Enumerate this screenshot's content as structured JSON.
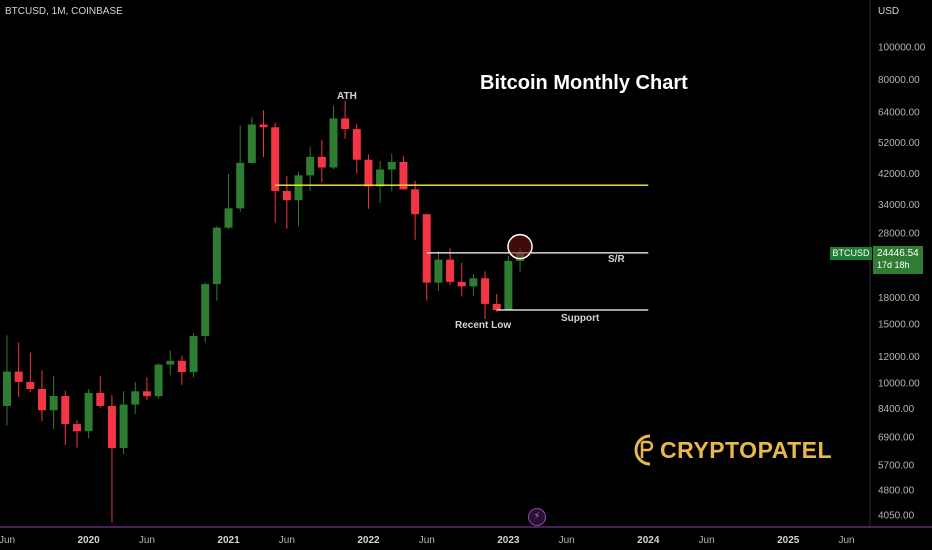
{
  "header": {
    "symbol": "BTCUSD, 1M, COINBASE",
    "currency": "USD"
  },
  "chart_data": {
    "type": "candlestick",
    "title": "Bitcoin Monthly Chart",
    "y_scale": "log",
    "y_ticks": [
      "100000.00",
      "80000.00",
      "64000.00",
      "52000.00",
      "42000.00",
      "34000.00",
      "28000.00",
      "18000.00",
      "15000.00",
      "12000.00",
      "10000.00",
      "8400.00",
      "6900.00",
      "5700.00",
      "4800.00",
      "4050.00"
    ],
    "x_ticks": [
      {
        "label": "Jun",
        "month": "2019-06",
        "bold": false
      },
      {
        "label": "2020",
        "month": "2020-01",
        "bold": true
      },
      {
        "label": "Jun",
        "month": "2020-06",
        "bold": false
      },
      {
        "label": "2021",
        "month": "2021-01",
        "bold": true
      },
      {
        "label": "Jun",
        "month": "2021-06",
        "bold": false
      },
      {
        "label": "2022",
        "month": "2022-01",
        "bold": true
      },
      {
        "label": "Jun",
        "month": "2022-06",
        "bold": false
      },
      {
        "label": "2023",
        "month": "2023-01",
        "bold": true
      },
      {
        "label": "Jun",
        "month": "2023-06",
        "bold": false
      },
      {
        "label": "2024",
        "month": "2024-01",
        "bold": true
      },
      {
        "label": "Jun",
        "month": "2024-06",
        "bold": false
      },
      {
        "label": "2025",
        "month": "2025-01",
        "bold": true
      },
      {
        "label": "Jun",
        "month": "2025-06",
        "bold": false
      }
    ],
    "candles": [
      {
        "month": "2019-06",
        "o": 8550,
        "h": 13880,
        "l": 7480,
        "c": 10820
      },
      {
        "month": "2019-07",
        "o": 10820,
        "h": 13200,
        "l": 9100,
        "c": 10080
      },
      {
        "month": "2019-08",
        "o": 10080,
        "h": 12320,
        "l": 9400,
        "c": 9600
      },
      {
        "month": "2019-09",
        "o": 9600,
        "h": 10900,
        "l": 7700,
        "c": 8300
      },
      {
        "month": "2019-10",
        "o": 8300,
        "h": 10500,
        "l": 7300,
        "c": 9150
      },
      {
        "month": "2019-11",
        "o": 9150,
        "h": 9500,
        "l": 6550,
        "c": 7550
      },
      {
        "month": "2019-12",
        "o": 7550,
        "h": 7750,
        "l": 6430,
        "c": 7190
      },
      {
        "month": "2020-01",
        "o": 7190,
        "h": 9600,
        "l": 6850,
        "c": 9350
      },
      {
        "month": "2020-02",
        "o": 9350,
        "h": 10500,
        "l": 8450,
        "c": 8550
      },
      {
        "month": "2020-03",
        "o": 8550,
        "h": 9200,
        "l": 3850,
        "c": 6410
      },
      {
        "month": "2020-04",
        "o": 6410,
        "h": 9460,
        "l": 6150,
        "c": 8630
      },
      {
        "month": "2020-05",
        "o": 8630,
        "h": 10080,
        "l": 8100,
        "c": 9450
      },
      {
        "month": "2020-06",
        "o": 9450,
        "h": 10400,
        "l": 8900,
        "c": 9140
      },
      {
        "month": "2020-07",
        "o": 9140,
        "h": 11450,
        "l": 8980,
        "c": 11350
      },
      {
        "month": "2020-08",
        "o": 11350,
        "h": 12480,
        "l": 10550,
        "c": 11650
      },
      {
        "month": "2020-09",
        "o": 11650,
        "h": 12080,
        "l": 9880,
        "c": 10780
      },
      {
        "month": "2020-10",
        "o": 10780,
        "h": 14100,
        "l": 10400,
        "c": 13800
      },
      {
        "month": "2020-11",
        "o": 13800,
        "h": 19900,
        "l": 13200,
        "c": 19700
      },
      {
        "month": "2020-12",
        "o": 19700,
        "h": 29300,
        "l": 17600,
        "c": 29000
      },
      {
        "month": "2021-01",
        "o": 29000,
        "h": 41900,
        "l": 28700,
        "c": 33100
      },
      {
        "month": "2021-02",
        "o": 33100,
        "h": 58400,
        "l": 32300,
        "c": 45200
      },
      {
        "month": "2021-03",
        "o": 45200,
        "h": 61800,
        "l": 44950,
        "c": 58800
      },
      {
        "month": "2021-04",
        "o": 58800,
        "h": 64800,
        "l": 47000,
        "c": 57700
      },
      {
        "month": "2021-05",
        "o": 57700,
        "h": 59500,
        "l": 30000,
        "c": 37300
      },
      {
        "month": "2021-06",
        "o": 37300,
        "h": 41300,
        "l": 28800,
        "c": 35000
      },
      {
        "month": "2021-07",
        "o": 35000,
        "h": 42400,
        "l": 29300,
        "c": 41500
      },
      {
        "month": "2021-08",
        "o": 41500,
        "h": 50500,
        "l": 37300,
        "c": 47100
      },
      {
        "month": "2021-09",
        "o": 47100,
        "h": 52900,
        "l": 39600,
        "c": 43800
      },
      {
        "month": "2021-10",
        "o": 43800,
        "h": 66900,
        "l": 43300,
        "c": 61300
      },
      {
        "month": "2021-11",
        "o": 61300,
        "h": 69000,
        "l": 53300,
        "c": 57000
      },
      {
        "month": "2021-12",
        "o": 57000,
        "h": 59100,
        "l": 42000,
        "c": 46200
      },
      {
        "month": "2022-01",
        "o": 46200,
        "h": 47900,
        "l": 33000,
        "c": 38500
      },
      {
        "month": "2022-02",
        "o": 38500,
        "h": 45800,
        "l": 34300,
        "c": 43200
      },
      {
        "month": "2022-03",
        "o": 43200,
        "h": 48200,
        "l": 37200,
        "c": 45500
      },
      {
        "month": "2022-04",
        "o": 45500,
        "h": 47400,
        "l": 37700,
        "c": 37700
      },
      {
        "month": "2022-05",
        "o": 37700,
        "h": 40000,
        "l": 26700,
        "c": 31800
      },
      {
        "month": "2022-06",
        "o": 31800,
        "h": 31900,
        "l": 17600,
        "c": 19900
      },
      {
        "month": "2022-07",
        "o": 19900,
        "h": 24700,
        "l": 18800,
        "c": 23300
      },
      {
        "month": "2022-08",
        "o": 23300,
        "h": 25200,
        "l": 19600,
        "c": 20000
      },
      {
        "month": "2022-09",
        "o": 20000,
        "h": 22800,
        "l": 18100,
        "c": 19400
      },
      {
        "month": "2022-10",
        "o": 19400,
        "h": 21100,
        "l": 18200,
        "c": 20500
      },
      {
        "month": "2022-11",
        "o": 20500,
        "h": 21500,
        "l": 15500,
        "c": 17200
      },
      {
        "month": "2022-12",
        "o": 17200,
        "h": 18400,
        "l": 16300,
        "c": 16500
      },
      {
        "month": "2023-01",
        "o": 16500,
        "h": 23900,
        "l": 16500,
        "c": 23100
      },
      {
        "month": "2023-02",
        "o": 23100,
        "h": 25250,
        "l": 21400,
        "c": 24446.54
      }
    ],
    "lines": [
      {
        "name": "upper-level",
        "price": 38800,
        "from": "2021-05",
        "to": "2024-01",
        "color": "#ffeb3b"
      },
      {
        "name": "sr-level",
        "price": 24400,
        "from": "2022-06",
        "to": "2024-01",
        "color": "#ffffff"
      },
      {
        "name": "support-level",
        "price": 16500,
        "from": "2022-12",
        "to": "2024-01",
        "color": "#ffffff"
      }
    ],
    "annotations": [
      {
        "key": "ath",
        "text": "ATH",
        "color": "#f5d442"
      },
      {
        "key": "sr",
        "text": "S/R",
        "color": "#ffffff"
      },
      {
        "key": "recent_low",
        "text": "Recent Low",
        "color": "#f5d442"
      },
      {
        "key": "support",
        "text": "Support",
        "color": "#f5d442"
      }
    ],
    "highlight": {
      "month": "2023-02",
      "price": 24446.54
    },
    "last_price": {
      "label": "BTCUSD",
      "value": "24446.54",
      "countdown": "17d 18h"
    },
    "colors": {
      "up": "#2e7d32",
      "down": "#f23645",
      "axis": "#8e44ad",
      "ath_line": "#ffeb3b"
    }
  },
  "watermark": {
    "brand": "CRYPTOPATEL",
    "color": "#e7b84a"
  }
}
